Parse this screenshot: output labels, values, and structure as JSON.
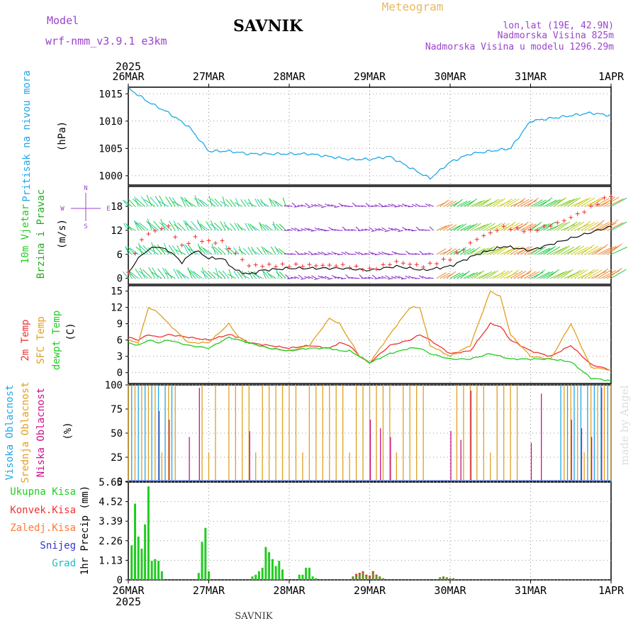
{
  "header": {
    "model_label": "Model",
    "model_name": "wrf-nmm_v3.9.1 e3km",
    "station": "SAVNIK",
    "chart_kind": "Meteogram",
    "lonlat": "lon,lat (19E, 42.9N)",
    "elevation": "Nadmorska Visina 825m",
    "model_elevation": "Nadmorska Visina u modelu 1296.29m",
    "footer_station": "SAVNIK",
    "watermark": "made by Angel"
  },
  "colors": {
    "pressure": "#1fa8e8",
    "wind_label": "#22cc22",
    "wind_label2": "#22aa22",
    "t2m": "#ee3333",
    "sfc": "#e0a020",
    "dew": "#22cc22",
    "cloud_high": "#1fa8e8",
    "cloud_mid": "#e0a020",
    "cloud_low": "#cc1188",
    "rain": "#22cc22",
    "convective": "#ee3333",
    "frozen": "#ff7733",
    "snow": "#3333cc",
    "hail": "#22bbbb",
    "purple": "#9a44cc"
  },
  "chart_data": [
    {
      "type": "line",
      "panel": "pressure",
      "ylabel": "Pritisak na nivou mora",
      "unit": "(hPa)",
      "yticks": [
        1000,
        1005,
        1010,
        1015
      ],
      "ylim": [
        998.3,
        1016.2
      ],
      "time_axis": {
        "start_year": "2025",
        "end_year": "2025",
        "labels": [
          "26MAR",
          "27MAR",
          "28MAR",
          "29MAR",
          "30MAR",
          "31MAR",
          "1APR"
        ],
        "days": 6
      },
      "x_hours": [
        0,
        6,
        12,
        18,
        24,
        30,
        36,
        42,
        48,
        54,
        60,
        66,
        72,
        78,
        84,
        90,
        96,
        102,
        108,
        114,
        120,
        126,
        132,
        138,
        144
      ],
      "values": [
        1016,
        1013.5,
        1011.5,
        1009,
        1004.5,
        1004.5,
        1004,
        1004,
        1004,
        1004,
        1003.5,
        1003,
        1003,
        1003.5,
        1001.5,
        999.5,
        1002.5,
        1004,
        1004.5,
        1005,
        1010,
        1010.5,
        1011,
        1011.5,
        1011
      ]
    },
    {
      "type": "line",
      "panel": "wind",
      "ylabel": [
        "10m Vjetar",
        "Brzina i Pravac"
      ],
      "unit": "(m/s)",
      "yticks": [
        0,
        6,
        12,
        18
      ],
      "ylim": [
        -1.5,
        23
      ],
      "compass": {
        "n": "N",
        "s": "S",
        "e": "E",
        "w": "W"
      },
      "barb_levels": [
        0,
        6,
        12,
        18
      ],
      "x_hours": [
        0,
        4,
        8,
        12,
        16,
        20,
        24,
        28,
        32,
        36,
        40,
        48,
        56,
        64,
        72,
        80,
        88,
        96,
        104,
        112,
        120,
        128,
        136,
        144
      ],
      "series": [
        {
          "name": "speed",
          "values": [
            1.5,
            6,
            8,
            7,
            4,
            7,
            5,
            5,
            2,
            1,
            2,
            2.5,
            2.5,
            2.5,
            2,
            3,
            2,
            3,
            6,
            8,
            7,
            9,
            11,
            13
          ]
        },
        {
          "name": "gust",
          "values": [
            2,
            10,
            12,
            13,
            8,
            10,
            9,
            9,
            6,
            3,
            3,
            3,
            3,
            3,
            2,
            4,
            3,
            5,
            10,
            13,
            12,
            14,
            17,
            21
          ]
        }
      ]
    },
    {
      "type": "line",
      "panel": "temperature",
      "ylabel": [
        "2m Temp",
        "SFC Temp",
        "dewpt Temp"
      ],
      "unit": "(C)",
      "yticks": [
        0,
        3,
        6,
        9,
        12,
        15
      ],
      "ylim": [
        -2,
        16
      ],
      "x_hours": [
        0,
        3,
        6,
        9,
        12,
        18,
        24,
        30,
        33,
        36,
        42,
        48,
        54,
        60,
        63,
        66,
        69,
        72,
        78,
        84,
        87,
        90,
        96,
        102,
        108,
        111,
        114,
        120,
        126,
        132,
        138,
        144
      ],
      "series": [
        {
          "name": "2m Temp",
          "values": [
            6.5,
            6,
            7,
            6.5,
            7,
            6.5,
            6,
            7,
            6.5,
            5.5,
            5,
            4.5,
            5,
            4.5,
            5.5,
            5,
            3,
            1.8,
            5,
            6,
            7,
            6,
            3.5,
            4,
            9,
            8.5,
            6,
            4,
            3,
            5,
            1.5,
            0.5
          ]
        },
        {
          "name": "SFC Temp",
          "values": [
            6,
            5.5,
            12,
            11,
            9,
            5.5,
            5.5,
            9,
            6.5,
            5.5,
            4.5,
            4,
            5,
            10,
            9,
            6,
            3,
            1.8,
            7,
            12,
            12,
            5,
            3,
            5,
            15,
            14,
            7,
            3,
            2.5,
            9,
            1,
            0.5
          ]
        },
        {
          "name": "dewpt Temp",
          "values": [
            5.5,
            5,
            6,
            5.5,
            6,
            5,
            4.5,
            6.5,
            6,
            5.5,
            4.5,
            4,
            4.5,
            4.5,
            4,
            4,
            3,
            1.8,
            3.5,
            4.5,
            4.5,
            3.5,
            2.5,
            2.5,
            3.5,
            3,
            2.5,
            2.5,
            2.5,
            2,
            -1,
            -1.5
          ]
        }
      ]
    },
    {
      "type": "bar",
      "panel": "clouds",
      "ylabel": [
        "Visoka Oblacnost",
        "Srednja Oblacnost",
        "Niska Oblacnost"
      ],
      "unit": "(%)",
      "yticks": [
        0,
        25,
        50,
        75,
        100
      ],
      "ylim": [
        0,
        100
      ],
      "series": [
        {
          "name": "Visoka Oblacnost",
          "values_hint": "100% during 26MAR morning and 31MAR afternoon"
        },
        {
          "name": "Srednja Oblacnost",
          "values_hint": "100% on most hours 26MAR to 29MAR, 30MAR afternoon, 31MAR afternoon"
        },
        {
          "name": "Niska Oblacnost",
          "values_hint": "sparse 40-100% spikes"
        }
      ]
    },
    {
      "type": "bar",
      "panel": "precip",
      "ylabel": "1hr Precip (mm)",
      "legend": [
        "Ukupna Kisa",
        "Konvek.Kisa",
        "Zaledj.Kisa",
        "Snijeg",
        "Grad"
      ],
      "yticks": [
        "0",
        "1.13",
        "2.26",
        "3.39",
        "4.52",
        "5.65"
      ],
      "ylim": [
        0,
        5.65
      ],
      "x_hours": [
        1,
        2,
        3,
        4,
        5,
        6,
        7,
        8,
        9,
        10,
        11,
        12,
        21,
        22,
        23,
        24,
        37,
        38,
        39,
        40,
        41,
        42,
        43,
        44,
        45,
        46,
        51,
        52,
        53,
        54,
        55,
        56,
        67,
        68,
        69,
        70,
        71,
        72,
        73,
        74,
        75,
        76,
        93,
        94,
        95,
        96,
        97
      ],
      "values": [
        2,
        4.4,
        2.5,
        1.8,
        3.2,
        5.4,
        1.1,
        1.2,
        1.1,
        0.5,
        0,
        0,
        0.4,
        2.2,
        3,
        0.5,
        0.2,
        0.3,
        0.5,
        0.7,
        1.9,
        1.6,
        1.2,
        0.8,
        1.1,
        0.6,
        0.3,
        0.3,
        0.7,
        0.7,
        0.2,
        0.1,
        0.2,
        0.35,
        0.4,
        0.5,
        0.3,
        0.25,
        0.5,
        0.3,
        0.2,
        0.1,
        0.15,
        0.2,
        0.15,
        0.1,
        0.1
      ]
    }
  ]
}
